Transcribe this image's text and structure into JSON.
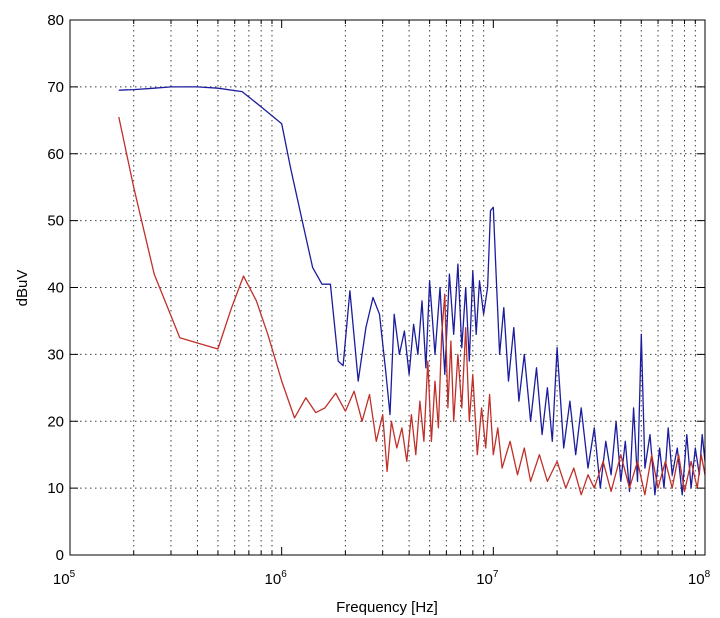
{
  "chart_data": {
    "type": "line",
    "xlabel": "Frequency [Hz]",
    "ylabel": "dBuV",
    "xscale": "log",
    "xlim": [
      100000,
      100000000
    ],
    "ylim": [
      0,
      80
    ],
    "grid": true,
    "y_ticks": [
      "0",
      "10",
      "20",
      "30",
      "40",
      "50",
      "60",
      "70",
      "80"
    ],
    "x_ticks": [
      {
        "base": "10",
        "exp": "5"
      },
      {
        "base": "10",
        "exp": "6"
      },
      {
        "base": "10",
        "exp": "7"
      },
      {
        "base": "10",
        "exp": "8"
      }
    ],
    "series": [
      {
        "color": "#1c1c9e",
        "points": [
          [
            170000,
            69.5
          ],
          [
            200000,
            69.6
          ],
          [
            250000,
            69.8
          ],
          [
            300000,
            70
          ],
          [
            400000,
            70
          ],
          [
            500000,
            69.8
          ],
          [
            650000,
            69.3
          ],
          [
            800000,
            67
          ],
          [
            1000000,
            64.5
          ],
          [
            1100000,
            58
          ],
          [
            1250000,
            50
          ],
          [
            1400000,
            43
          ],
          [
            1550000,
            40.5
          ],
          [
            1700000,
            40.5
          ],
          [
            1850000,
            29
          ],
          [
            1950000,
            28.3
          ],
          [
            2100000,
            39.5
          ],
          [
            2300000,
            26
          ],
          [
            2500000,
            34
          ],
          [
            2700000,
            38.5
          ],
          [
            2900000,
            36
          ],
          [
            3100000,
            27.5
          ],
          [
            3250000,
            21
          ],
          [
            3400000,
            36
          ],
          [
            3600000,
            30
          ],
          [
            3800000,
            33.5
          ],
          [
            4000000,
            27
          ],
          [
            4200000,
            34.5
          ],
          [
            4400000,
            30
          ],
          [
            4600000,
            38
          ],
          [
            4800000,
            28
          ],
          [
            5000000,
            41
          ],
          [
            5300000,
            30
          ],
          [
            5600000,
            40
          ],
          [
            5900000,
            27
          ],
          [
            6200000,
            42
          ],
          [
            6500000,
            33
          ],
          [
            6800000,
            43.5
          ],
          [
            7100000,
            31
          ],
          [
            7400000,
            40
          ],
          [
            7700000,
            29
          ],
          [
            8000000,
            42.5
          ],
          [
            8300000,
            33
          ],
          [
            8600000,
            41
          ],
          [
            9000000,
            36
          ],
          [
            9400000,
            40
          ],
          [
            9700000,
            51.5
          ],
          [
            10000000,
            52
          ],
          [
            10300000,
            42
          ],
          [
            10700000,
            30
          ],
          [
            11200000,
            37
          ],
          [
            11800000,
            26
          ],
          [
            12500000,
            34
          ],
          [
            13200000,
            23
          ],
          [
            14000000,
            30
          ],
          [
            15000000,
            20
          ],
          [
            16000000,
            28
          ],
          [
            17000000,
            18
          ],
          [
            18000000,
            25
          ],
          [
            19000000,
            17
          ],
          [
            20000000,
            31
          ],
          [
            21500000,
            16
          ],
          [
            23000000,
            23
          ],
          [
            24500000,
            15
          ],
          [
            26000000,
            22
          ],
          [
            28000000,
            13
          ],
          [
            30000000,
            19
          ],
          [
            32000000,
            10
          ],
          [
            34000000,
            17
          ],
          [
            36000000,
            12
          ],
          [
            38000000,
            20
          ],
          [
            40000000,
            11
          ],
          [
            42000000,
            17
          ],
          [
            44000000,
            9.5
          ],
          [
            46000000,
            22
          ],
          [
            48000000,
            11
          ],
          [
            50000000,
            33
          ],
          [
            52000000,
            13
          ],
          [
            55000000,
            18
          ],
          [
            58000000,
            9
          ],
          [
            61000000,
            16
          ],
          [
            64000000,
            10
          ],
          [
            67000000,
            19
          ],
          [
            70000000,
            12
          ],
          [
            74000000,
            16
          ],
          [
            78000000,
            9
          ],
          [
            82000000,
            18
          ],
          [
            86000000,
            10
          ],
          [
            90000000,
            16
          ],
          [
            94000000,
            12
          ],
          [
            97000000,
            18
          ],
          [
            100000000,
            14
          ]
        ]
      },
      {
        "color": "#c0302a",
        "points": [
          [
            170000,
            65.5
          ],
          [
            200000,
            55
          ],
          [
            250000,
            42
          ],
          [
            330000,
            32.5
          ],
          [
            400000,
            31.7
          ],
          [
            500000,
            30.8
          ],
          [
            580000,
            37
          ],
          [
            660000,
            41.7
          ],
          [
            760000,
            38
          ],
          [
            860000,
            33
          ],
          [
            1000000,
            26
          ],
          [
            1150000,
            20.5
          ],
          [
            1300000,
            23.5
          ],
          [
            1450000,
            21.3
          ],
          [
            1600000,
            22
          ],
          [
            1800000,
            24.2
          ],
          [
            2000000,
            21.5
          ],
          [
            2200000,
            24.5
          ],
          [
            2400000,
            20
          ],
          [
            2600000,
            24
          ],
          [
            2800000,
            17
          ],
          [
            3000000,
            21
          ],
          [
            3150000,
            12.5
          ],
          [
            3300000,
            20
          ],
          [
            3500000,
            16
          ],
          [
            3700000,
            19
          ],
          [
            3900000,
            14
          ],
          [
            4100000,
            21
          ],
          [
            4300000,
            15
          ],
          [
            4500000,
            23
          ],
          [
            4700000,
            17
          ],
          [
            4900000,
            29
          ],
          [
            5100000,
            17
          ],
          [
            5300000,
            26
          ],
          [
            5500000,
            19
          ],
          [
            5700000,
            33
          ],
          [
            5900000,
            39
          ],
          [
            6100000,
            22
          ],
          [
            6300000,
            32
          ],
          [
            6500000,
            20
          ],
          [
            6800000,
            30
          ],
          [
            7100000,
            22
          ],
          [
            7400000,
            34
          ],
          [
            7700000,
            20
          ],
          [
            8000000,
            27
          ],
          [
            8400000,
            15
          ],
          [
            8800000,
            22
          ],
          [
            9200000,
            16
          ],
          [
            9600000,
            24
          ],
          [
            10000000,
            15
          ],
          [
            10500000,
            19
          ],
          [
            11000000,
            13
          ],
          [
            12000000,
            17
          ],
          [
            13000000,
            12
          ],
          [
            14000000,
            16
          ],
          [
            15000000,
            11
          ],
          [
            16500000,
            15
          ],
          [
            18000000,
            11
          ],
          [
            20000000,
            14
          ],
          [
            22000000,
            10
          ],
          [
            24000000,
            13
          ],
          [
            26000000,
            9
          ],
          [
            28000000,
            12
          ],
          [
            30000000,
            10
          ],
          [
            33000000,
            14
          ],
          [
            36000000,
            9.5
          ],
          [
            40000000,
            15
          ],
          [
            44000000,
            10
          ],
          [
            48000000,
            14
          ],
          [
            52000000,
            9
          ],
          [
            56000000,
            15
          ],
          [
            60000000,
            10
          ],
          [
            65000000,
            14
          ],
          [
            70000000,
            10
          ],
          [
            75000000,
            15
          ],
          [
            80000000,
            9.5
          ],
          [
            86000000,
            14
          ],
          [
            92000000,
            10
          ],
          [
            96000000,
            15
          ],
          [
            100000000,
            12
          ]
        ]
      }
    ]
  }
}
